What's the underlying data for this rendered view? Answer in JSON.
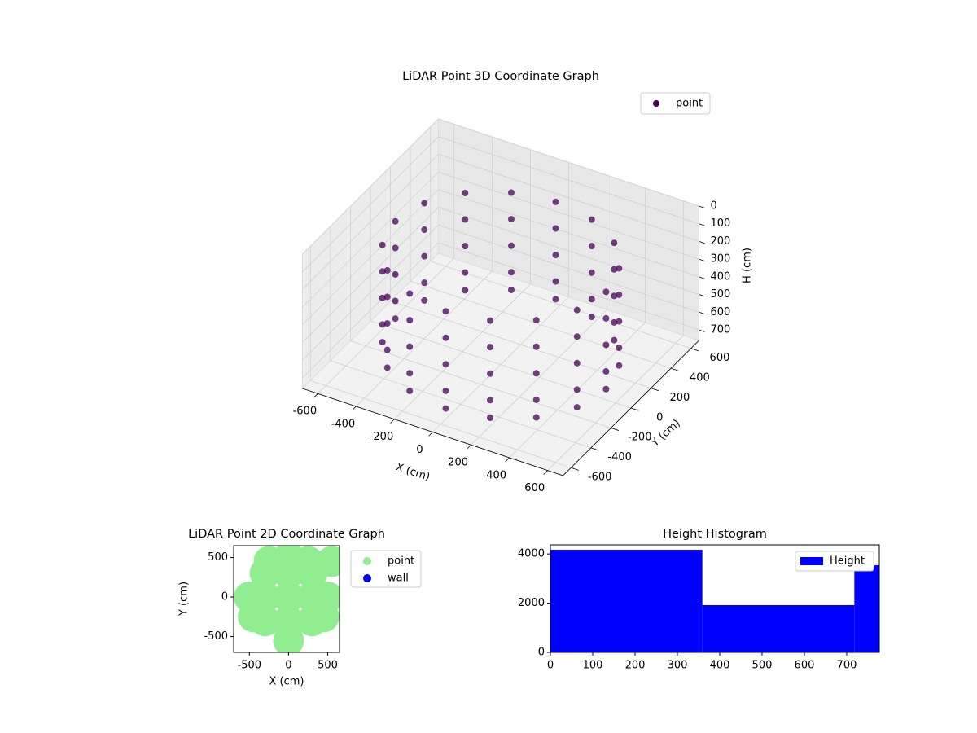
{
  "chart_data": [
    {
      "type": "scatter3d",
      "title": "LiDAR Point 3D Coordinate Graph",
      "x_label": "X (cm)",
      "y_label": "Y (cm)",
      "z_label": "H (cm)",
      "xlim": [
        -680,
        680
      ],
      "ylim": [
        -680,
        680
      ],
      "zlim": [
        760,
        0
      ],
      "xticks": [
        -600,
        -400,
        -200,
        0,
        200,
        400,
        600
      ],
      "yticks": [
        -600,
        -400,
        -200,
        0,
        200,
        400,
        600
      ],
      "zticks": [
        0,
        100,
        200,
        300,
        400,
        500,
        600,
        700
      ],
      "legend": "upper right",
      "series": [
        {
          "name": "point",
          "color": "#440154",
          "x": [
            550,
            508,
            389,
            210,
            0,
            -210,
            -389,
            -508,
            -550,
            -508,
            -389,
            -210,
            0,
            210,
            389,
            508,
            550,
            508,
            389,
            210,
            0,
            -210,
            -389,
            -508,
            -550,
            -508,
            -389,
            -210,
            0,
            210,
            389,
            508,
            550,
            508,
            389,
            210,
            0,
            -210,
            -389,
            -508,
            -550,
            -508,
            -389,
            -210,
            0,
            210,
            389,
            508,
            550,
            508,
            389,
            210,
            0,
            -210,
            -389,
            -508,
            -550,
            -508,
            -389,
            -210,
            0,
            210,
            389,
            508,
            550,
            508,
            389,
            210,
            0,
            -210,
            -389,
            -508,
            -550,
            -508,
            -389,
            -210,
            0,
            210,
            389,
            508
          ],
          "y": [
            0,
            210,
            389,
            508,
            550,
            508,
            389,
            210,
            0,
            -210,
            -389,
            -508,
            -550,
            -508,
            -389,
            -210,
            0,
            210,
            389,
            508,
            550,
            508,
            389,
            210,
            0,
            -210,
            -389,
            -508,
            -550,
            -508,
            -389,
            -210,
            0,
            210,
            389,
            508,
            550,
            508,
            389,
            210,
            0,
            -210,
            -389,
            -508,
            -550,
            -508,
            -389,
            -210,
            0,
            210,
            389,
            508,
            550,
            508,
            389,
            210,
            0,
            -210,
            -389,
            -508,
            -550,
            -508,
            -389,
            -210,
            0,
            210,
            389,
            508,
            550,
            508,
            389,
            210,
            0,
            -210,
            -389,
            -508,
            -550,
            -508,
            -389,
            -210
          ],
          "z": [
            150,
            150,
            150,
            150,
            150,
            150,
            150,
            150,
            150,
            150,
            150,
            150,
            150,
            150,
            150,
            150,
            300,
            300,
            300,
            300,
            300,
            300,
            300,
            300,
            300,
            300,
            300,
            300,
            300,
            300,
            300,
            300,
            450,
            450,
            450,
            450,
            450,
            450,
            450,
            450,
            450,
            450,
            450,
            450,
            450,
            450,
            450,
            450,
            600,
            600,
            600,
            600,
            600,
            600,
            600,
            600,
            600,
            600,
            600,
            600,
            600,
            600,
            600,
            600,
            700,
            700,
            700,
            700,
            700,
            700,
            700,
            700,
            700,
            700,
            700,
            700,
            700,
            700,
            700,
            700
          ]
        }
      ]
    },
    {
      "type": "scatter",
      "title": "LiDAR Point 2D Coordinate Graph",
      "x_label": "X (cm)",
      "y_label": "Y (cm)",
      "xlim": [
        -700,
        650
      ],
      "ylim": [
        -700,
        650
      ],
      "xticks": [
        -500,
        0,
        500
      ],
      "yticks": [
        -500,
        0,
        500
      ],
      "legend": "outside right",
      "series": [
        {
          "name": "point",
          "color": "#90ee90",
          "x": [
            0,
            300,
            -300,
            0,
            0,
            300,
            -300,
            300,
            -300,
            500,
            -500,
            0,
            0,
            450,
            -450,
            250,
            -250,
            550
          ],
          "y": [
            0,
            0,
            0,
            300,
            -300,
            300,
            300,
            -300,
            -300,
            0,
            0,
            500,
            -550,
            -250,
            -250,
            450,
            450,
            450
          ]
        },
        {
          "name": "wall",
          "color": "#0000ff",
          "x": [],
          "y": []
        }
      ]
    },
    {
      "type": "histogram",
      "title": "Height Histogram",
      "bins": [
        0,
        359,
        718,
        777
      ],
      "values": [
        4170,
        1920,
        3540
      ],
      "xlim": [
        0,
        777
      ],
      "ylim": [
        0,
        4370
      ],
      "xticks": [
        0,
        100,
        200,
        300,
        400,
        500,
        600,
        700
      ],
      "yticks": [
        0,
        2000,
        4000
      ],
      "legend": "upper right",
      "series_name": "Height",
      "color": "#0000ff"
    }
  ]
}
